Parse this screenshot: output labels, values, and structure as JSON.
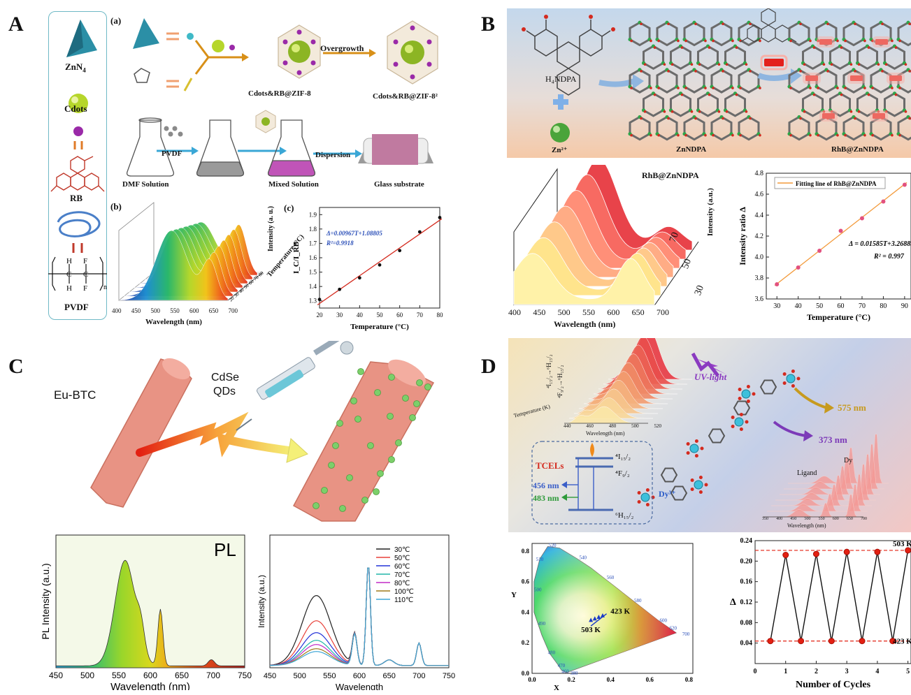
{
  "panels": {
    "A": {
      "letter": "A",
      "legend": [
        "ZnN",
        "Cdots",
        "RB",
        "PVDF"
      ],
      "pvdf_formula": {
        "h": "H",
        "f": "F",
        "c": "C",
        "n": "n"
      },
      "sublabels": {
        "a": "(a)",
        "b": "(b)",
        "c": "(c)"
      },
      "steps": {
        "product1": "Cdots&RB@ZIF-8",
        "overgrowth": "Overgrowth",
        "product2": "Cdots&RB@ZIF-8²",
        "dmf": "DMF Solution",
        "pvdf": "PVDF",
        "mixed": "Mixed Solution",
        "dispersion": "Dispersion",
        "glass": "Glass substrate"
      },
      "waterfall": {
        "xlabel": "Wavelength (nm)",
        "ylabel": "Intensity (a. u.)",
        "zlabel": "Temperature (°C)",
        "xticks": [
          "400",
          "450",
          "500",
          "550",
          "600",
          "650",
          "700"
        ],
        "zticks": [
          "20",
          "30",
          "40",
          "50",
          "60",
          "70",
          "80"
        ]
      }
    },
    "B": {
      "letter": "B",
      "labels": {
        "linker": "H₄NDPA",
        "metal": "Zn²⁺",
        "mof": "ZnNDPA",
        "composite": "RhB@ZnNDPA"
      },
      "waterfall": {
        "title": "RhB@ZnNDPA",
        "xlabel": "Wavelength (nm)",
        "ylabel": "Intensity (a.u.)",
        "xticks": [
          "400",
          "450",
          "500",
          "550",
          "600",
          "650",
          "700"
        ],
        "zticks": [
          "30",
          "50",
          "70"
        ]
      }
    },
    "C": {
      "letter": "C",
      "labels": {
        "mof": "Eu-BTC",
        "qd": "CdSe",
        "qd2": "QDs"
      },
      "pl": {
        "title": "PL",
        "xlabel": "Wavelength (nm)",
        "ylabel": "PL Intensity (a.u.)",
        "xticks": [
          "450",
          "500",
          "550",
          "600",
          "650",
          "700",
          "750"
        ]
      },
      "temp": {
        "xlabel": "Wavelength",
        "ylabel": "Intensity (a.u.)",
        "xticks": [
          "450",
          "500",
          "550",
          "600",
          "650",
          "700",
          "750"
        ]
      }
    },
    "D": {
      "letter": "D",
      "labels": {
        "uv": "UV-light",
        "em1": "575 nm",
        "em2": "373 nm",
        "tcels": "TCELs",
        "l1": "⁴I₁₅/₂",
        "l2": "⁴F₉/₂",
        "l3": "⁶H₁₅/₂",
        "w1": "456 nm",
        "w2": "483 nm",
        "dy": "Dy³⁺",
        "ligand": "Ligand",
        "dy2": "Dy",
        "inset_xlabel": "Wavelength (nm)",
        "inset_zlabel": "Temperature (K)",
        "tr1": "⁴I₁₅/₂→⁶H₁₅/₂",
        "tr2": "⁴F₉/₂→⁶H₁₅/₂",
        "inset1_xticks": [
          "440",
          "460",
          "480",
          "500",
          "520"
        ],
        "inset2_xticks": [
          "350",
          "400",
          "450",
          "500",
          "550",
          "600",
          "650",
          "700"
        ]
      },
      "cie": {
        "xlabel": "X",
        "ylabel": "Y",
        "xticks": [
          "0.0",
          "0.2",
          "0.4",
          "0.6",
          "0.8"
        ],
        "yticks": [
          "0.0",
          "0.2",
          "0.4",
          "0.6",
          "0.8"
        ],
        "wl": [
          "520",
          "540",
          "560",
          "580",
          "600",
          "620",
          "700",
          "510",
          "500",
          "490",
          "480",
          "470",
          "460",
          "380"
        ],
        "t1": "423 K",
        "t2": "503 K"
      }
    }
  },
  "chart_data": [
    {
      "type": "scatter",
      "xlabel": "Temperature (°C)",
      "ylabel": "I_C/I_RB",
      "xlim": [
        20,
        80
      ],
      "ylim": [
        1.25,
        1.95
      ],
      "xticks": [
        20,
        30,
        40,
        50,
        60,
        70,
        80
      ],
      "yticks": [
        1.3,
        1.4,
        1.5,
        1.6,
        1.7,
        1.8,
        1.9
      ],
      "points": {
        "x": [
          20,
          30,
          40,
          50,
          60,
          70,
          80
        ],
        "y": [
          1.31,
          1.38,
          1.46,
          1.55,
          1.65,
          1.78,
          1.88
        ]
      },
      "fit": {
        "equation": "Δ=0.00967T+1.08805",
        "r2": "R²=0.9918",
        "slope": 0.00967,
        "intercept": 1.08805
      }
    },
    {
      "type": "scatter",
      "legend": "Fitting line of RhB@ZnNDPA",
      "xlabel": "Temperature (°C)",
      "ylabel": "Intensity ratio Δ",
      "xlim": [
        25,
        93
      ],
      "ylim": [
        3.6,
        4.8
      ],
      "xticks": [
        30,
        40,
        50,
        60,
        70,
        80,
        90
      ],
      "yticks": [
        3.6,
        3.8,
        4.0,
        4.2,
        4.4,
        4.6,
        4.8
      ],
      "points": {
        "x": [
          30,
          40,
          50,
          60,
          70,
          80,
          90
        ],
        "y": [
          3.74,
          3.9,
          4.06,
          4.25,
          4.37,
          4.53,
          4.69
        ]
      },
      "fit": {
        "equation": "Δ = 0.01585T+3.26883",
        "r2": "R² = 0.997",
        "slope": 0.01585,
        "intercept": 3.26883
      }
    },
    {
      "type": "line",
      "legend": [
        "30℃",
        "50℃",
        "60℃",
        "70℃",
        "80℃",
        "100℃",
        "110℃"
      ],
      "colors": [
        "#222222",
        "#e8413a",
        "#2433d8",
        "#21b6a9",
        "#c22bc7",
        "#a07a1c",
        "#3fa7d6"
      ],
      "peak_scale": [
        1.0,
        0.64,
        0.47,
        0.36,
        0.3,
        0.24,
        0.2
      ]
    },
    {
      "type": "line",
      "xlabel": "Number of Cycles",
      "ylabel": "Δ",
      "xlim": [
        0,
        5.1
      ],
      "ylim": [
        0.0,
        0.24
      ],
      "xticks": [
        0,
        1,
        2,
        3,
        4,
        5
      ],
      "yticks": [
        0.04,
        0.08,
        0.12,
        0.16,
        0.2,
        0.24
      ],
      "x": [
        0.5,
        1,
        1.5,
        2,
        2.5,
        3,
        3.5,
        4,
        4.5,
        5
      ],
      "y": [
        0.044,
        0.212,
        0.044,
        0.214,
        0.044,
        0.218,
        0.044,
        0.218,
        0.044,
        0.221
      ],
      "high_label": "503 K",
      "low_label": "423 K"
    }
  ]
}
